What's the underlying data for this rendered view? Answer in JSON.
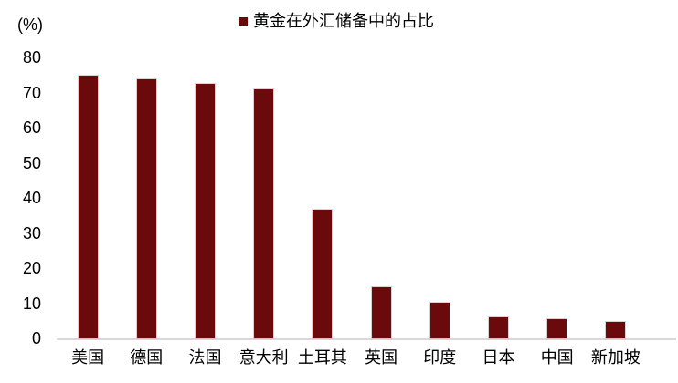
{
  "legend": {
    "label": "黄金在外汇储备中的占比",
    "marker": "square-icon"
  },
  "y_axis_unit": "(%)",
  "chart_data": {
    "type": "bar",
    "title": "黄金在外汇储备中的占比",
    "categories": [
      "美国",
      "德国",
      "法国",
      "意大利",
      "土耳其",
      "英国",
      "印度",
      "日本",
      "中国",
      "新加坡"
    ],
    "values": [
      74.8,
      73.8,
      72.5,
      70.9,
      36.6,
      14.6,
      10.2,
      5.9,
      5.4,
      4.6
    ],
    "xlabel": "",
    "ylabel": "(%)",
    "ylim": [
      0,
      80
    ],
    "yticks": [
      0,
      10,
      20,
      30,
      40,
      50,
      60,
      70,
      80
    ],
    "grid": false,
    "legend_position": "top-center",
    "bar_color": "#6a0a0a",
    "axis_line_color": "#d9d9d9",
    "text_color": "#000000"
  }
}
